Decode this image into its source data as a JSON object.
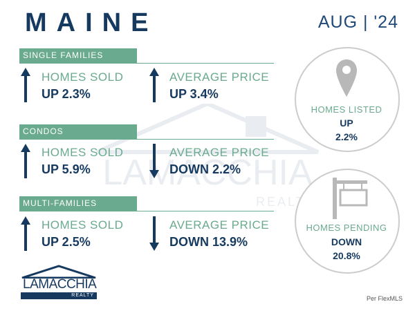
{
  "header": {
    "title": "MAINE",
    "date": "AUG | '24"
  },
  "sections": [
    {
      "name": "SINGLE FAMILIES",
      "homes_sold": {
        "label": "HOMES SOLD",
        "value": "UP 2.3%",
        "direction": "up"
      },
      "avg_price": {
        "label": "AVERAGE PRICE",
        "value": "UP 3.4%",
        "direction": "up"
      }
    },
    {
      "name": "CONDOS",
      "homes_sold": {
        "label": "HOMES SOLD",
        "value": "UP 5.9%",
        "direction": "up"
      },
      "avg_price": {
        "label": "AVERAGE PRICE",
        "value": "DOWN 2.2%",
        "direction": "down"
      }
    },
    {
      "name": "MULTI-FAMILIES",
      "homes_sold": {
        "label": "HOMES SOLD",
        "value": "UP 2.5%",
        "direction": "up"
      },
      "avg_price": {
        "label": "AVERAGE PRICE",
        "value": "DOWN 13.9%",
        "direction": "down"
      }
    }
  ],
  "listed": {
    "label": "HOMES LISTED",
    "direction": "UP",
    "value": "2.2%",
    "icon": "map-pin-icon"
  },
  "pending": {
    "label": "HOMES PENDING",
    "direction": "DOWN",
    "value": "20.8%",
    "icon": "sale-sign-icon"
  },
  "logo": {
    "name": "LAMACCHIA",
    "sub": "REALTY"
  },
  "watermark": {
    "name": "LAMACCHIA",
    "sub": "REALTY"
  },
  "source": "Per FlexMLS",
  "colors": {
    "navy": "#163a5f",
    "green": "#6aaa8e",
    "circle_border": "#cccccc"
  }
}
